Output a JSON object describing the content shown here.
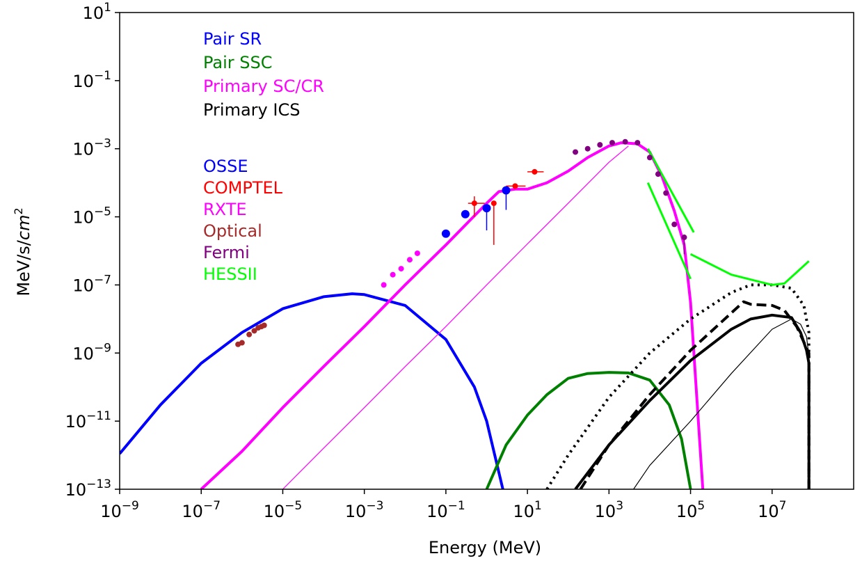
{
  "chart_data": {
    "type": "line",
    "xlabel": "Energy (MeV)",
    "ylabel_base": "MeV/s/",
    "ylabel_italic": "cm",
    "ylabel_sup": "2",
    "xscale": "log",
    "yscale": "log",
    "xlim": [
      1e-09,
      1000000000.0
    ],
    "ylim": [
      1e-13,
      10
    ],
    "x_ticks": [
      {
        "base": "10",
        "exp": "−9",
        "value": 1e-09
      },
      {
        "base": "10",
        "exp": "−7",
        "value": 1e-07
      },
      {
        "base": "10",
        "exp": "−5",
        "value": 1e-05
      },
      {
        "base": "10",
        "exp": "−3",
        "value": 0.001
      },
      {
        "base": "10",
        "exp": "−1",
        "value": 0.1
      },
      {
        "base": "10",
        "exp": "1",
        "value": 10
      },
      {
        "base": "10",
        "exp": "3",
        "value": 1000.0
      },
      {
        "base": "10",
        "exp": "5",
        "value": 100000.0
      },
      {
        "base": "10",
        "exp": "7",
        "value": 10000000.0
      }
    ],
    "y_ticks": [
      {
        "base": "10",
        "exp": "1",
        "value": 10
      },
      {
        "base": "10",
        "exp": "−1",
        "value": 0.1
      },
      {
        "base": "10",
        "exp": "−3",
        "value": 0.001
      },
      {
        "base": "10",
        "exp": "−5",
        "value": 1e-05
      },
      {
        "base": "10",
        "exp": "−7",
        "value": 1e-07
      },
      {
        "base": "10",
        "exp": "−9",
        "value": 1e-09
      },
      {
        "base": "10",
        "exp": "−11",
        "value": 1e-11
      },
      {
        "base": "10",
        "exp": "−13",
        "value": 1e-13
      }
    ],
    "legend_models": [
      {
        "label": "Pair SR",
        "color": "#0000ff"
      },
      {
        "label": "Pair SSC",
        "color": "#008000"
      },
      {
        "label": "Primary SC/CR",
        "color": "#ff00ff"
      },
      {
        "label": "Primary ICS",
        "color": "#000000"
      }
    ],
    "legend_data": [
      {
        "label": "OSSE",
        "color": "#0000ff"
      },
      {
        "label": "COMPTEL",
        "color": "#ff0000"
      },
      {
        "label": "RXTE",
        "color": "#ff00ff"
      },
      {
        "label": "Optical",
        "color": "#a52a2a"
      },
      {
        "label": "Fermi",
        "color": "#800080"
      },
      {
        "label": "HESSII",
        "color": "#00ff00"
      }
    ],
    "series": [
      {
        "name": "Pair SR",
        "color": "#0000ff",
        "width": 4,
        "dash": "",
        "points": [
          [
            1e-09,
            1.1e-12
          ],
          [
            1e-08,
            3e-11
          ],
          [
            1e-07,
            5e-10
          ],
          [
            1e-06,
            4e-09
          ],
          [
            1e-05,
            2e-08
          ],
          [
            0.0001,
            4.5e-08
          ],
          [
            0.0005,
            5.5e-08
          ],
          [
            0.001,
            5.2e-08
          ],
          [
            0.01,
            2.5e-08
          ],
          [
            0.1,
            2.5e-09
          ],
          [
            0.5,
            1e-10
          ],
          [
            1,
            1e-11
          ],
          [
            2.5,
            1e-13
          ]
        ]
      },
      {
        "name": "Pair SSC",
        "color": "#008000",
        "width": 4,
        "dash": "",
        "points": [
          [
            1,
            1e-13
          ],
          [
            3,
            2e-12
          ],
          [
            10,
            1.5e-11
          ],
          [
            30,
            6e-11
          ],
          [
            100,
            1.8e-10
          ],
          [
            300,
            2.5e-10
          ],
          [
            1000,
            2.7e-10
          ],
          [
            3000,
            2.6e-10
          ],
          [
            10000.0,
            1.6e-10
          ],
          [
            30000.0,
            3e-11
          ],
          [
            60000.0,
            3e-12
          ],
          [
            100000.0,
            1e-13
          ]
        ]
      },
      {
        "name": "Primary SC/CR",
        "color": "#ff00ff",
        "width": 4,
        "dash": "",
        "points": [
          [
            1e-07,
            1e-13
          ],
          [
            1e-06,
            1.3e-12
          ],
          [
            1e-05,
            2.5e-11
          ],
          [
            0.0001,
            4e-10
          ],
          [
            0.001,
            6e-09
          ],
          [
            0.01,
            1e-07
          ],
          [
            0.1,
            1.5e-06
          ],
          [
            1,
            2.5e-05
          ],
          [
            2,
            5.5e-05
          ],
          [
            5,
            6.5e-05
          ],
          [
            10,
            6.5e-05
          ],
          [
            30,
            0.0001
          ],
          [
            100,
            0.00022
          ],
          [
            300,
            0.00055
          ],
          [
            1000,
            0.0012
          ],
          [
            2000,
            0.0015
          ],
          [
            5000,
            0.0014
          ],
          [
            10000.0,
            0.0008
          ],
          [
            20000.0,
            0.00015
          ],
          [
            40000.0,
            1.5e-05
          ],
          [
            70000.0,
            1.5e-06
          ],
          [
            100000.0,
            3e-08
          ],
          [
            200000.0,
            1e-13
          ]
        ]
      },
      {
        "name": "Primary SC/CR thin",
        "color": "#ff00ff",
        "width": 1.2,
        "dash": "",
        "points": [
          [
            1e-05,
            1e-13
          ],
          [
            0.0001,
            1.6e-12
          ],
          [
            0.001,
            2.5e-11
          ],
          [
            0.01,
            4e-10
          ],
          [
            0.1,
            6e-09
          ],
          [
            1,
            1e-07
          ],
          [
            10,
            1.6e-06
          ],
          [
            100,
            2.5e-05
          ],
          [
            1000,
            0.0004
          ],
          [
            3000,
            0.0012
          ]
        ]
      },
      {
        "name": "Primary ICS dotted",
        "color": "#000000",
        "width": 4,
        "dash": "3,6",
        "points": [
          [
            30,
            1e-13
          ],
          [
            100,
            1e-12
          ],
          [
            1000,
            5e-11
          ],
          [
            10000.0,
            1e-09
          ],
          [
            100000.0,
            1e-08
          ],
          [
            1000000.0,
            6e-08
          ],
          [
            3000000.0,
            1e-07
          ],
          [
            10000000.0,
            1e-07
          ],
          [
            30000000.0,
            8e-08
          ],
          [
            60000000.0,
            2.5e-08
          ],
          [
            80000000.0,
            4e-09
          ],
          [
            80000000.0,
            1e-13
          ]
        ]
      },
      {
        "name": "Primary ICS dashed",
        "color": "#000000",
        "width": 4,
        "dash": "14,7",
        "points": [
          [
            200,
            1e-13
          ],
          [
            1000,
            2e-12
          ],
          [
            10000.0,
            6e-11
          ],
          [
            100000.0,
            1.2e-09
          ],
          [
            1000000.0,
            1.5e-08
          ],
          [
            2000000.0,
            3.2e-08
          ],
          [
            3000000.0,
            2.7e-08
          ],
          [
            10000000.0,
            2.5e-08
          ],
          [
            20000000.0,
            1.8e-08
          ],
          [
            40000000.0,
            6e-09
          ],
          [
            80000000.0,
            1e-09
          ],
          [
            80000000.0,
            1e-13
          ]
        ]
      },
      {
        "name": "Primary ICS solid",
        "color": "#000000",
        "width": 4,
        "dash": "",
        "points": [
          [
            150,
            1e-13
          ],
          [
            1000,
            2e-12
          ],
          [
            10000.0,
            4e-11
          ],
          [
            100000.0,
            6e-10
          ],
          [
            1000000.0,
            5e-09
          ],
          [
            3000000.0,
            1e-08
          ],
          [
            10000000.0,
            1.3e-08
          ],
          [
            30000000.0,
            1.1e-08
          ],
          [
            50000000.0,
            4e-09
          ],
          [
            70000000.0,
            1.2e-09
          ],
          [
            80000000.0,
            5e-10
          ],
          [
            80000000.0,
            1e-13
          ]
        ]
      },
      {
        "name": "Primary ICS thin",
        "color": "#000000",
        "width": 1.2,
        "dash": "",
        "points": [
          [
            4000,
            1e-13
          ],
          [
            10000.0,
            5e-13
          ],
          [
            100000.0,
            1e-11
          ],
          [
            1000000.0,
            2.5e-10
          ],
          [
            10000000.0,
            5e-09
          ],
          [
            30000000.0,
            1e-08
          ],
          [
            50000000.0,
            7e-09
          ],
          [
            70000000.0,
            3e-09
          ],
          [
            80000000.0,
            8e-10
          ],
          [
            80000000.0,
            1e-13
          ]
        ]
      },
      {
        "name": "HESSII",
        "color": "#00ff00",
        "width": 3,
        "dash": "",
        "points": [
          [
            100000.0,
            8e-07
          ],
          [
            1000000.0,
            2e-07
          ],
          [
            10000000.0,
            1e-07
          ],
          [
            20000000.0,
            1.1e-07
          ],
          [
            80000000.0,
            5e-07
          ]
        ]
      },
      {
        "name": "HESSII band upper",
        "color": "#00ff00",
        "width": 3,
        "dash": "",
        "points": [
          [
            9000,
            0.001
          ],
          [
            120000.0,
            3.5e-06
          ]
        ]
      },
      {
        "name": "HESSII band lower",
        "color": "#00ff00",
        "width": 3,
        "dash": "",
        "points": [
          [
            9000,
            0.0001
          ],
          [
            100000.0,
            1.5e-07
          ]
        ]
      }
    ],
    "points": [
      {
        "name": "Optical",
        "color": "#a52a2a",
        "r": 4,
        "points": [
          [
            8e-07,
            1.8e-09
          ],
          [
            1e-06,
            2e-09
          ],
          [
            1.5e-06,
            3.5e-09
          ],
          [
            2e-06,
            4.5e-09
          ],
          [
            2.5e-06,
            5.5e-09
          ],
          [
            3e-06,
            6e-09
          ],
          [
            3.5e-06,
            6.5e-09
          ]
        ]
      },
      {
        "name": "RXTE",
        "color": "#ff00ff",
        "r": 4,
        "points": [
          [
            0.003,
            1e-07
          ],
          [
            0.005,
            2e-07
          ],
          [
            0.008,
            3e-07
          ],
          [
            0.013,
            5.5e-07
          ],
          [
            0.02,
            8.5e-07
          ]
        ]
      },
      {
        "name": "OSSE",
        "color": "#0000ff",
        "r": 6,
        "points": [
          [
            0.1,
            3.2e-06
          ],
          [
            0.3,
            1.2e-05
          ],
          [
            1,
            1.8e-05
          ],
          [
            3,
            6e-05
          ]
        ]
      },
      {
        "name": "COMPTEL",
        "color": "#ff0000",
        "r": 4,
        "points": [
          [
            0.5,
            2.5e-05
          ],
          [
            1.5,
            2.5e-05
          ],
          [
            5,
            8e-05
          ],
          [
            15,
            0.00021
          ]
        ]
      },
      {
        "name": "Fermi",
        "color": "#800080",
        "r": 4,
        "points": [
          [
            150,
            0.0008
          ],
          [
            300,
            0.001
          ],
          [
            600,
            0.0013
          ],
          [
            1200,
            0.0015
          ],
          [
            2500,
            0.0016
          ],
          [
            5000,
            0.0015
          ],
          [
            10000.0,
            0.00055
          ],
          [
            16000.0,
            0.00018
          ],
          [
            25000.0,
            5e-05
          ],
          [
            40000.0,
            6e-06
          ],
          [
            70000.0,
            2.5e-06
          ]
        ]
      }
    ],
    "error_bars": [
      {
        "color": "#ff0000",
        "x": 0.5,
        "y": 2.5e-05,
        "xmin": 0.35,
        "xmax": 0.9,
        "ymin": 2.5e-05,
        "ymax": 2.5e-05
      },
      {
        "color": "#ff0000",
        "x": 1.5,
        "y": 2.5e-05,
        "xmin": 1.5,
        "xmax": 1.5,
        "ymin": 1.5e-06,
        "ymax": 2.5e-05
      },
      {
        "color": "#ff0000",
        "x": 5,
        "y": 8e-05,
        "xmin": 3,
        "xmax": 9,
        "ymin": 8e-05,
        "ymax": 8e-05
      },
      {
        "color": "#ff0000",
        "x": 15,
        "y": 0.00021,
        "xmin": 10,
        "xmax": 25,
        "ymin": 0.00021,
        "ymax": 0.00021
      },
      {
        "color": "#ff0000",
        "x": 0.5,
        "y": 2.5e-05,
        "xmin": 0.5,
        "xmax": 0.5,
        "ymin": 1e-05,
        "ymax": 4e-05
      },
      {
        "color": "#0000ff",
        "x": 1,
        "y": 1.8e-05,
        "xmin": 1,
        "xmax": 1,
        "ymin": 4e-06,
        "ymax": 1.8e-05
      },
      {
        "color": "#0000ff",
        "x": 3,
        "y": 6e-05,
        "xmin": 3,
        "xmax": 3,
        "ymin": 1.6e-05,
        "ymax": 6e-05
      },
      {
        "color": "#800080",
        "x": 70000.0,
        "y": 2.5e-06,
        "xmin": 70000.0,
        "xmax": 70000.0,
        "ymin": 8e-07,
        "ymax": 2.5e-06
      }
    ]
  }
}
